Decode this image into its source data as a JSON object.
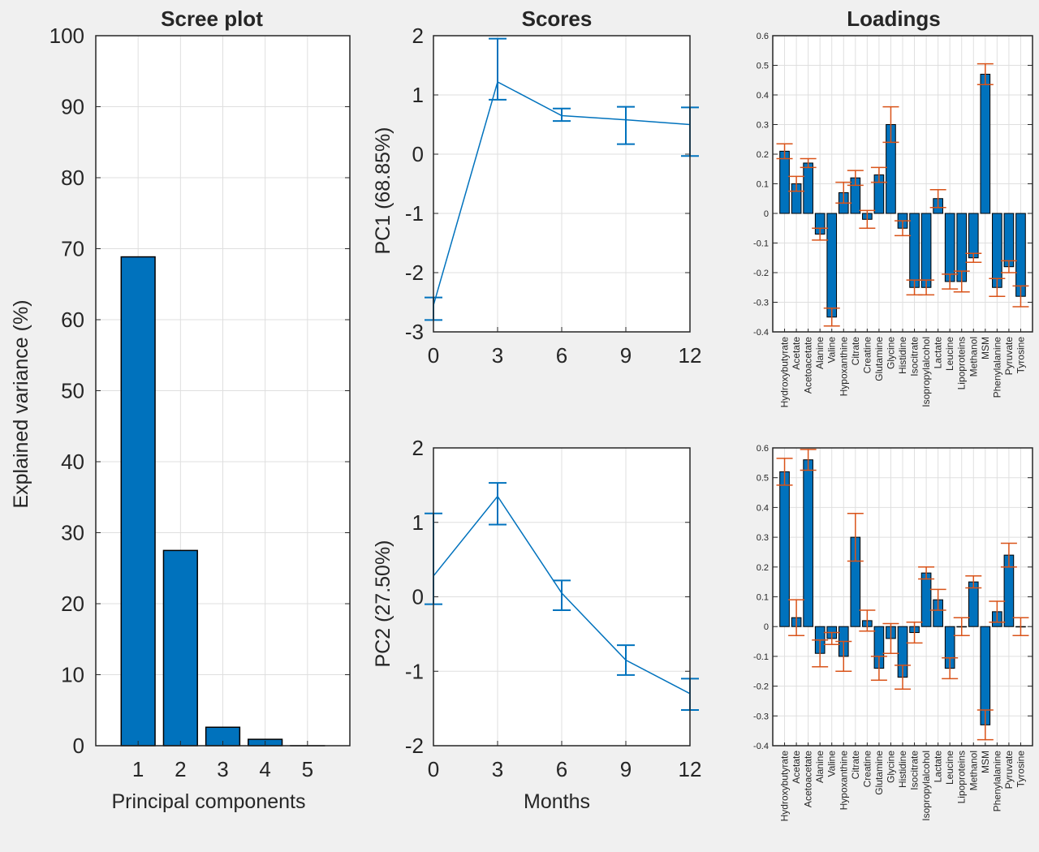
{
  "colors": {
    "background": "#f0f0f0",
    "axes_bg": "#ffffff",
    "bar_fill": "#0072bd",
    "line": "#0072bd",
    "errorbar_loadings": "#d95319",
    "grid": "#dfdfdf",
    "axis": "#262626"
  },
  "chart_data": [
    {
      "id": "scree",
      "type": "bar",
      "title": "Scree plot",
      "xlabel": "Principal components",
      "ylabel": "Explained variance (%)",
      "categories": [
        "1",
        "2",
        "3",
        "4",
        "5"
      ],
      "values": [
        68.85,
        27.5,
        2.6,
        0.9,
        0
      ],
      "xlim": [
        0,
        6
      ],
      "ylim": [
        0,
        100
      ],
      "yticks": [
        "0",
        "10",
        "20",
        "30",
        "40",
        "50",
        "60",
        "70",
        "80",
        "90",
        "100"
      ],
      "grid": true
    },
    {
      "id": "scores_pc1",
      "type": "line",
      "title": "Scores",
      "xlabel": "",
      "ylabel": "PC1 (68.85%)",
      "x": [
        0,
        3,
        6,
        9,
        12
      ],
      "y": [
        -2.55,
        1.22,
        0.65,
        0.58,
        0.5
      ],
      "yerr_low": [
        -2.8,
        0.92,
        0.56,
        0.17,
        -0.03
      ],
      "yerr_high": [
        -2.42,
        1.95,
        0.77,
        0.8,
        0.79
      ],
      "xticks": [
        "0",
        "3",
        "6",
        "9",
        "12"
      ],
      "yticks": [
        "-3",
        "-2",
        "-1",
        "0",
        "1",
        "2"
      ],
      "xlim": [
        0,
        12
      ],
      "ylim": [
        -3,
        2
      ],
      "grid": true
    },
    {
      "id": "scores_pc2",
      "type": "line",
      "title": "",
      "xlabel": "Months",
      "ylabel": "PC2 (27.50%)",
      "x": [
        0,
        3,
        6,
        9,
        12
      ],
      "y": [
        0.28,
        1.35,
        0.05,
        -0.85,
        -1.3
      ],
      "yerr_low": [
        -0.1,
        0.97,
        -0.18,
        -1.05,
        -1.52
      ],
      "yerr_high": [
        1.12,
        1.53,
        0.22,
        -0.65,
        -1.1
      ],
      "xticks": [
        "0",
        "3",
        "6",
        "9",
        "12"
      ],
      "yticks": [
        "-2",
        "-1",
        "0",
        "1",
        "2"
      ],
      "xlim": [
        0,
        12
      ],
      "ylim": [
        -2,
        2
      ],
      "grid": true
    },
    {
      "id": "loadings_pc1",
      "type": "bar",
      "title": "Loadings",
      "categories": [
        "Hydroxybutyrate",
        "Acetate",
        "Acetoacetate",
        "Alanine",
        "Valine",
        "Hypoxanthine",
        "Citrate",
        "Creatine",
        "Glutamine",
        "Glycine",
        "Histidine",
        "Isocitrate",
        "Isopropylalcohol",
        "Lactate",
        "Leucine",
        "Lipoproteins",
        "Methanol",
        "MSM",
        "Phenylalanine",
        "Pyruvate",
        "Tyrosine"
      ],
      "values": [
        0.21,
        0.1,
        0.17,
        -0.07,
        -0.35,
        0.07,
        0.12,
        -0.02,
        0.13,
        0.3,
        -0.05,
        -0.25,
        -0.25,
        0.05,
        -0.23,
        -0.23,
        -0.15,
        0.47,
        -0.25,
        -0.18,
        -0.28
      ],
      "err": [
        0.025,
        0.025,
        0.015,
        0.02,
        0.03,
        0.035,
        0.025,
        0.03,
        0.025,
        0.06,
        0.025,
        0.025,
        0.025,
        0.03,
        0.025,
        0.035,
        0.015,
        0.035,
        0.03,
        0.02,
        0.035
      ],
      "ylim": [
        -0.4,
        0.6
      ],
      "yticks": [
        "-0.4",
        "-0.3",
        "-0.2",
        "-0.1",
        "0",
        "0.1",
        "0.2",
        "0.3",
        "0.4",
        "0.5",
        "0.6"
      ],
      "grid": true
    },
    {
      "id": "loadings_pc2",
      "type": "bar",
      "title": "",
      "categories": [
        "Hydroxybutyrate",
        "Acetate",
        "Acetoacetate",
        "Alanine",
        "Valine",
        "Hypoxanthine",
        "Citrate",
        "Creatine",
        "Glutamine",
        "Glycine",
        "Histidine",
        "Isocitrate",
        "Isopropylalcohol",
        "Lactate",
        "Leucine",
        "Lipoproteins",
        "Methanol",
        "MSM",
        "Phenylalanine",
        "Pyruvate",
        "Tyrosine"
      ],
      "values": [
        0.52,
        0.03,
        0.56,
        -0.09,
        -0.04,
        -0.1,
        0.3,
        0.02,
        -0.14,
        -0.04,
        -0.17,
        -0.02,
        0.18,
        0.09,
        -0.14,
        0.0,
        0.15,
        -0.33,
        0.05,
        0.24,
        0.0
      ],
      "err": [
        0.045,
        0.06,
        0.035,
        0.045,
        0.02,
        0.05,
        0.08,
        0.035,
        0.04,
        0.05,
        0.04,
        0.035,
        0.02,
        0.035,
        0.035,
        0.03,
        0.02,
        0.05,
        0.035,
        0.04,
        0.03
      ],
      "ylim": [
        -0.4,
        0.6
      ],
      "yticks": [
        "-0.4",
        "-0.3",
        "-0.2",
        "-0.1",
        "0",
        "0.1",
        "0.2",
        "0.3",
        "0.4",
        "0.5",
        "0.6"
      ],
      "grid": true
    }
  ]
}
